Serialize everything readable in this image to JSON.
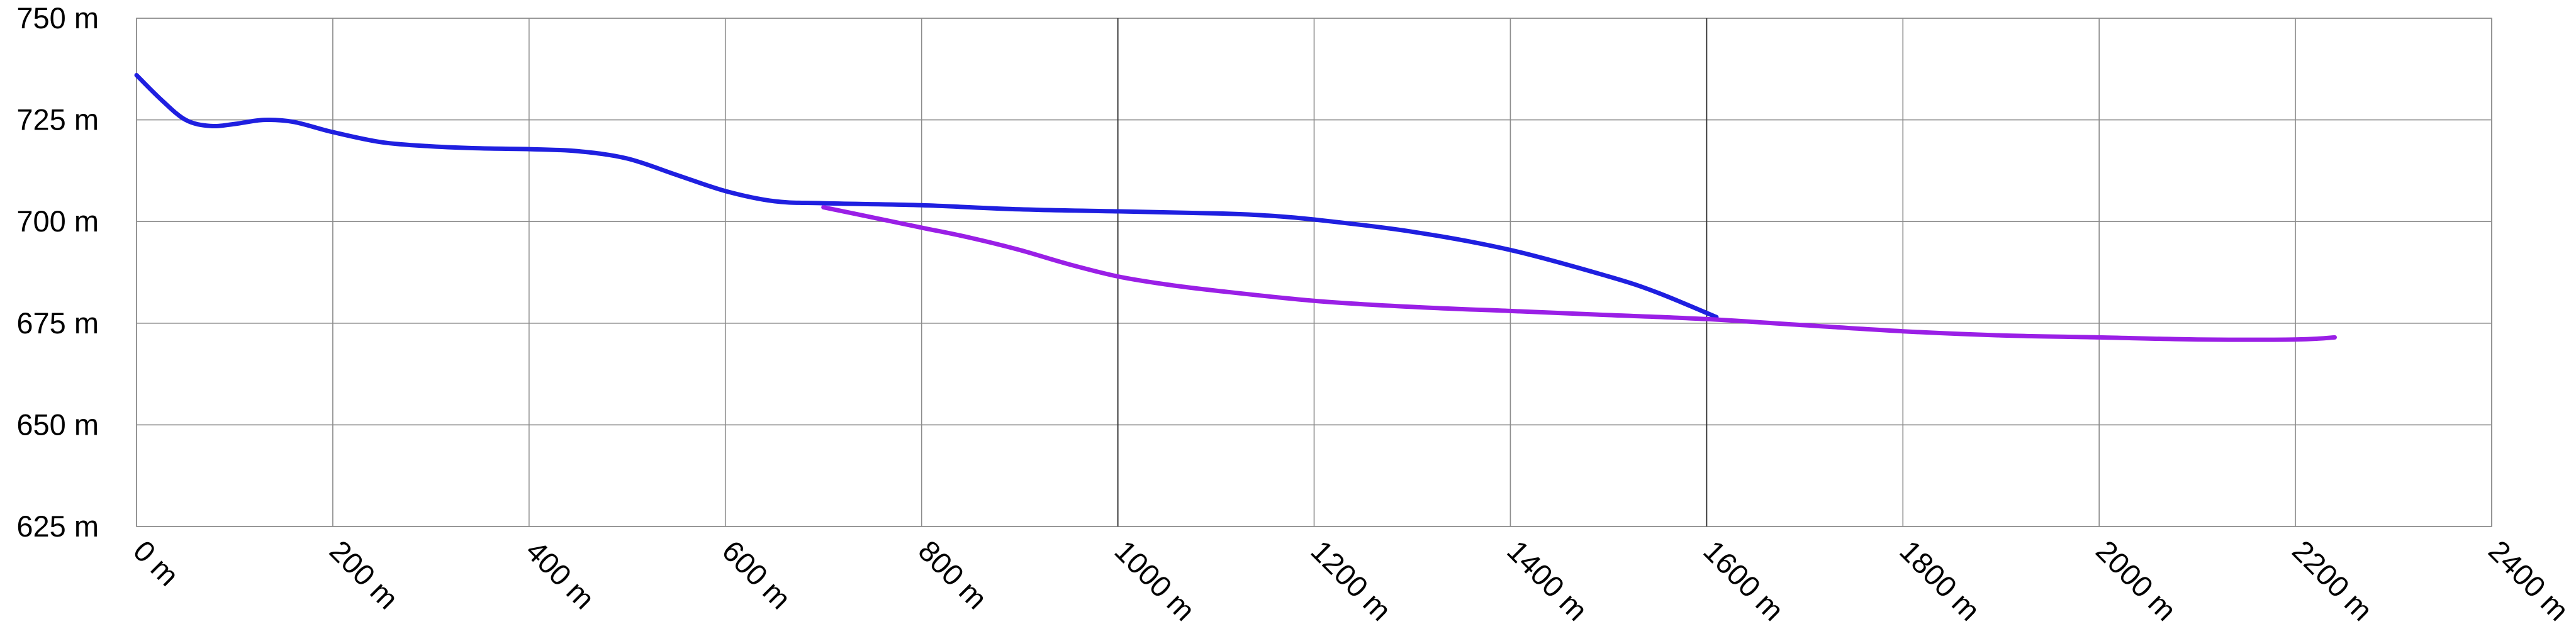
{
  "chart_data": {
    "type": "line",
    "title": "",
    "xlabel": "",
    "ylabel": "",
    "xlim": [
      0,
      2400
    ],
    "ylim": [
      625,
      750
    ],
    "x_ticks": [
      0,
      200,
      400,
      600,
      800,
      1000,
      1200,
      1400,
      1600,
      1800,
      2000,
      2200,
      2400
    ],
    "x_tick_labels": [
      "0 m",
      "200 m",
      "400 m",
      "600 m",
      "800 m",
      "1000 m",
      "1200 m",
      "1400 m",
      "1600 m",
      "1800 m",
      "2000 m",
      "2200 m",
      "2400 m"
    ],
    "y_ticks": [
      625,
      650,
      675,
      700,
      725,
      750
    ],
    "y_tick_labels": [
      "625 m",
      "650 m",
      "675 m",
      "700 m",
      "725 m",
      "750 m"
    ],
    "emphasized_x_gridlines": [
      1000,
      1600
    ],
    "grid": true,
    "legend": "none",
    "series": [
      {
        "color": "#1f1fe0",
        "points": [
          [
            0,
            736
          ],
          [
            25,
            730
          ],
          [
            50,
            725
          ],
          [
            75,
            723.5
          ],
          [
            100,
            724
          ],
          [
            130,
            725
          ],
          [
            160,
            724.5
          ],
          [
            200,
            722
          ],
          [
            250,
            719.5
          ],
          [
            300,
            718.5
          ],
          [
            350,
            718
          ],
          [
            400,
            717.8
          ],
          [
            450,
            717.3
          ],
          [
            500,
            715.5
          ],
          [
            550,
            711.5
          ],
          [
            600,
            707.5
          ],
          [
            650,
            705
          ],
          [
            700,
            704.5
          ],
          [
            800,
            704
          ],
          [
            900,
            703
          ],
          [
            1000,
            702.5
          ],
          [
            1100,
            702
          ],
          [
            1150,
            701.5
          ],
          [
            1200,
            700.5
          ],
          [
            1300,
            697.5
          ],
          [
            1400,
            693
          ],
          [
            1500,
            686.5
          ],
          [
            1550,
            682.5
          ],
          [
            1610,
            676.5
          ]
        ]
      },
      {
        "color": "#9a1fe6",
        "points": [
          [
            700,
            703.5
          ],
          [
            750,
            701
          ],
          [
            800,
            698.5
          ],
          [
            850,
            696
          ],
          [
            900,
            693
          ],
          [
            950,
            689.5
          ],
          [
            1000,
            686.5
          ],
          [
            1050,
            684.5
          ],
          [
            1100,
            683
          ],
          [
            1200,
            680.5
          ],
          [
            1300,
            679
          ],
          [
            1400,
            678
          ],
          [
            1500,
            677
          ],
          [
            1600,
            676
          ],
          [
            1700,
            674.5
          ],
          [
            1800,
            673
          ],
          [
            1900,
            672
          ],
          [
            2000,
            671.5
          ],
          [
            2100,
            671
          ],
          [
            2200,
            671
          ],
          [
            2240,
            671.5
          ]
        ]
      }
    ]
  }
}
